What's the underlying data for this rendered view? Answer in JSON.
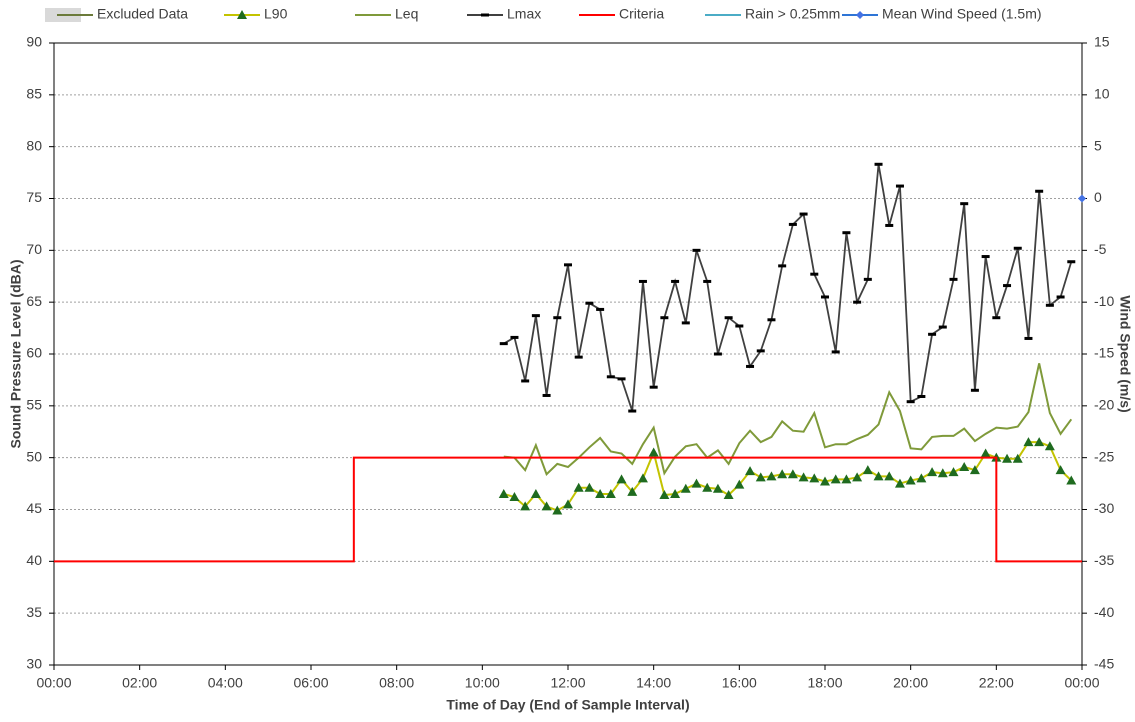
{
  "chart_data": {
    "type": "line",
    "xlabel": "Time of Day (End of Sample Interval)",
    "ylabel": "Sound Pressure Level (dBA)",
    "y2label": "Wind Speed (m/s)",
    "xlim": [
      0,
      24
    ],
    "xticks": [
      {
        "value": 0,
        "label": "00:00"
      },
      {
        "value": 2,
        "label": "02:00"
      },
      {
        "value": 4,
        "label": "04:00"
      },
      {
        "value": 6,
        "label": "06:00"
      },
      {
        "value": 8,
        "label": "08:00"
      },
      {
        "value": 10,
        "label": "10:00"
      },
      {
        "value": 12,
        "label": "12:00"
      },
      {
        "value": 14,
        "label": "14:00"
      },
      {
        "value": 16,
        "label": "16:00"
      },
      {
        "value": 18,
        "label": "18:00"
      },
      {
        "value": 20,
        "label": "20:00"
      },
      {
        "value": 22,
        "label": "22:00"
      },
      {
        "value": 24,
        "label": "00:00"
      }
    ],
    "ylim": [
      30,
      90
    ],
    "yticks": [
      30,
      35,
      40,
      45,
      50,
      55,
      60,
      65,
      70,
      75,
      80,
      85,
      90
    ],
    "y2lim": [
      -45,
      15
    ],
    "y2ticks": [
      -45,
      -40,
      -35,
      -30,
      -25,
      -20,
      -15,
      -10,
      -5,
      0,
      5,
      10,
      15
    ],
    "grid": true,
    "legend": "top",
    "series": [
      {
        "name": "Excluded Data",
        "color": "#d9d9d9",
        "line_color": "#6b7a3a",
        "style": "area",
        "x": [],
        "values": []
      },
      {
        "name": "L90",
        "color": "#c3c300",
        "marker": "triangle",
        "marker_color": "#1f6b1f",
        "x": [
          10.5,
          10.75,
          11,
          11.25,
          11.5,
          11.75,
          12,
          12.25,
          12.5,
          12.75,
          13,
          13.25,
          13.5,
          13.75,
          14,
          14.25,
          14.5,
          14.75,
          15,
          15.25,
          15.5,
          15.75,
          16,
          16.25,
          16.5,
          16.75,
          17,
          17.25,
          17.5,
          17.75,
          18,
          18.25,
          18.5,
          18.75,
          19,
          19.25,
          19.5,
          19.75,
          20,
          20.25,
          20.5,
          20.75,
          21,
          21.25,
          21.5,
          21.75,
          22,
          22.25,
          22.5,
          22.75,
          23,
          23.25,
          23.5,
          23.75
        ],
        "values": [
          46.5,
          46.2,
          45.3,
          46.5,
          45.3,
          44.9,
          45.5,
          47.1,
          47.1,
          46.5,
          46.5,
          47.9,
          46.7,
          48.0,
          50.5,
          46.4,
          46.5,
          47.0,
          47.5,
          47.1,
          47.0,
          46.4,
          47.4,
          48.7,
          48.1,
          48.2,
          48.4,
          48.4,
          48.1,
          48.0,
          47.7,
          47.9,
          47.9,
          48.1,
          48.8,
          48.2,
          48.2,
          47.5,
          47.8,
          48.0,
          48.6,
          48.5,
          48.6,
          49.1,
          48.8,
          50.4,
          50.0,
          49.9,
          49.9,
          51.5,
          51.5,
          51.1,
          48.8,
          47.8
        ]
      },
      {
        "name": "Leq",
        "color": "#7f9a3a",
        "x": [
          10.5,
          10.75,
          11,
          11.25,
          11.5,
          11.75,
          12,
          12.25,
          12.5,
          12.75,
          13,
          13.25,
          13.5,
          13.75,
          14,
          14.25,
          14.5,
          14.75,
          15,
          15.25,
          15.5,
          15.75,
          16,
          16.25,
          16.5,
          16.75,
          17,
          17.25,
          17.5,
          17.75,
          18,
          18.25,
          18.5,
          18.75,
          19,
          19.25,
          19.5,
          19.75,
          20,
          20.25,
          20.5,
          20.75,
          21,
          21.25,
          21.5,
          21.75,
          22,
          22.25,
          22.5,
          22.75,
          23,
          23.25,
          23.5,
          23.75
        ],
        "values": [
          50.1,
          50.0,
          48.8,
          51.2,
          48.4,
          49.4,
          49.1,
          50.0,
          51.0,
          51.9,
          50.6,
          50.4,
          49.4,
          51.3,
          52.9,
          48.5,
          50.1,
          51.1,
          51.3,
          50.0,
          50.7,
          49.4,
          51.4,
          52.6,
          51.5,
          52.0,
          53.5,
          52.6,
          52.5,
          54.3,
          51.0,
          51.3,
          51.3,
          51.8,
          52.2,
          53.2,
          56.3,
          54.5,
          50.9,
          50.8,
          52.0,
          52.1,
          52.1,
          52.8,
          51.6,
          52.3,
          52.9,
          52.8,
          53.0,
          54.4,
          59.1,
          54.3,
          52.3,
          53.7
        ]
      },
      {
        "name": "Lmax",
        "color": "#404040",
        "marker": "dash",
        "marker_color": "#000000",
        "x": [
          10.5,
          10.75,
          11,
          11.25,
          11.5,
          11.75,
          12,
          12.25,
          12.5,
          12.75,
          13,
          13.25,
          13.5,
          13.75,
          14,
          14.25,
          14.5,
          14.75,
          15,
          15.25,
          15.5,
          15.75,
          16,
          16.25,
          16.5,
          16.75,
          17,
          17.25,
          17.5,
          17.75,
          18,
          18.25,
          18.5,
          18.75,
          19,
          19.25,
          19.5,
          19.75,
          20,
          20.25,
          20.5,
          20.75,
          21,
          21.25,
          21.5,
          21.75,
          22,
          22.25,
          22.5,
          22.75,
          23,
          23.25,
          23.5,
          23.75
        ],
        "values": [
          61.0,
          61.6,
          57.4,
          63.7,
          56.0,
          63.5,
          68.6,
          59.7,
          64.9,
          64.3,
          57.8,
          57.6,
          54.5,
          67.0,
          56.8,
          63.5,
          67.0,
          63.0,
          70.0,
          67.0,
          60.0,
          63.5,
          62.7,
          58.8,
          60.3,
          63.3,
          68.5,
          72.5,
          73.5,
          67.7,
          65.5,
          60.2,
          71.7,
          65.0,
          67.2,
          78.3,
          72.4,
          76.2,
          55.4,
          55.9,
          61.9,
          62.6,
          67.2,
          74.5,
          56.5,
          69.4,
          63.5,
          66.6,
          70.2,
          61.5,
          75.7,
          64.7,
          65.5,
          68.9
        ]
      },
      {
        "name": "Criteria",
        "color": "#ff0000",
        "x": [
          0,
          7,
          7,
          22,
          22,
          24
        ],
        "values": [
          40,
          40,
          50,
          50,
          40,
          40
        ]
      },
      {
        "name": "Rain > 0.25mm",
        "color": "#4bacc6",
        "axis": "y2",
        "x": [],
        "values": []
      },
      {
        "name": "Mean Wind Speed (1.5m)",
        "color": "#2e75d6",
        "axis": "y2",
        "marker": "diamond",
        "marker_color": "#4472e4",
        "x": [
          24
        ],
        "values": [
          0
        ]
      }
    ]
  }
}
